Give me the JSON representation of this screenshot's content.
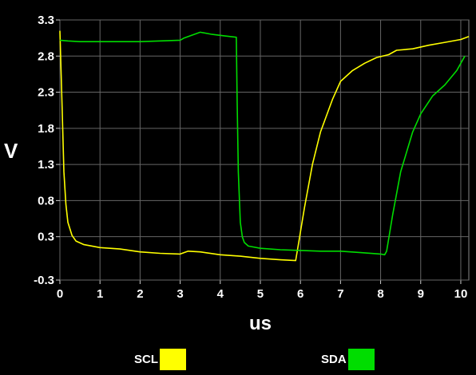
{
  "chart_data": {
    "type": "line",
    "xlabel": "us",
    "ylabel": "V",
    "xlim": [
      0,
      10.2
    ],
    "ylim": [
      -0.3,
      3.3
    ],
    "x_ticks": [
      "0",
      "1",
      "2",
      "3",
      "4",
      "5",
      "6",
      "7",
      "8",
      "9",
      "10"
    ],
    "y_ticks": [
      "-0.3",
      "0.3",
      "0.8",
      "1.3",
      "1.8",
      "2.3",
      "2.8",
      "3.3"
    ],
    "grid": true,
    "legend_position": "bottom",
    "series": [
      {
        "name": "SCL",
        "color": "#ffff00",
        "x": [
          0,
          0.05,
          0.1,
          0.15,
          0.2,
          0.3,
          0.4,
          0.6,
          0.8,
          1.0,
          1.5,
          2.0,
          2.5,
          3.0,
          3.2,
          3.5,
          4.0,
          4.5,
          5.0,
          5.5,
          5.88,
          5.95,
          6.1,
          6.3,
          6.5,
          6.8,
          7.0,
          7.3,
          7.6,
          7.9,
          8.2,
          8.4,
          8.8,
          9.2,
          9.6,
          10.0,
          10.2
        ],
        "y": [
          3.15,
          2.2,
          1.2,
          0.75,
          0.5,
          0.32,
          0.24,
          0.19,
          0.17,
          0.15,
          0.13,
          0.09,
          0.07,
          0.06,
          0.1,
          0.09,
          0.05,
          0.03,
          0.0,
          -0.02,
          -0.03,
          0.2,
          0.7,
          1.3,
          1.75,
          2.2,
          2.45,
          2.6,
          2.7,
          2.78,
          2.82,
          2.88,
          2.9,
          2.95,
          2.99,
          3.03,
          3.07
        ]
      },
      {
        "name": "SDA",
        "color": "#00dd00",
        "x": [
          0,
          0.2,
          0.5,
          1.0,
          1.5,
          2.0,
          2.5,
          3.0,
          3.1,
          3.3,
          3.5,
          3.8,
          4.1,
          4.4,
          4.42,
          4.45,
          4.5,
          4.55,
          4.6,
          4.7,
          5.0,
          5.5,
          6.0,
          6.5,
          7.0,
          7.5,
          8.0,
          8.1,
          8.15,
          8.3,
          8.5,
          8.8,
          9.0,
          9.3,
          9.6,
          9.9,
          10.1
        ],
        "y": [
          3.02,
          3.01,
          3.0,
          3.0,
          3.0,
          3.0,
          3.01,
          3.02,
          3.05,
          3.09,
          3.13,
          3.1,
          3.08,
          3.06,
          2.2,
          1.2,
          0.5,
          0.3,
          0.22,
          0.17,
          0.14,
          0.12,
          0.11,
          0.1,
          0.1,
          0.08,
          0.06,
          0.05,
          0.1,
          0.6,
          1.2,
          1.75,
          2.0,
          2.25,
          2.4,
          2.6,
          2.8
        ]
      }
    ]
  }
}
